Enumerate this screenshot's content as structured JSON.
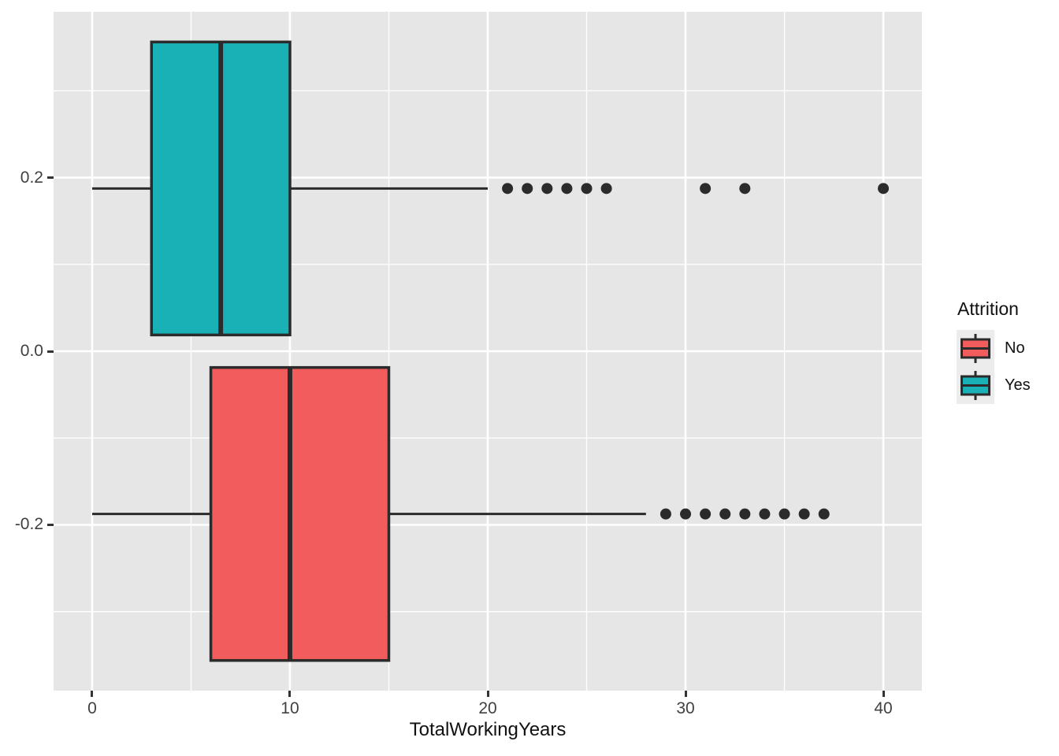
{
  "chart_data": {
    "type": "boxplot",
    "orientation": "horizontal",
    "title": "",
    "xlabel": "TotalWorkingYears",
    "ylabel": "",
    "x_axis": {
      "ticks": [
        0,
        10,
        20,
        30,
        40
      ],
      "tick_labels": [
        "0",
        "10",
        "20",
        "30",
        "40"
      ],
      "minor_ticks": [
        5,
        15,
        25,
        35
      ],
      "lim": [
        -1.95,
        41.95
      ]
    },
    "y_axis": {
      "ticks": [
        0.2,
        0.0,
        -0.2
      ],
      "tick_labels": [
        "0.2",
        "0.0",
        "-0.2"
      ],
      "minor_ticks": [
        0.3,
        0.1,
        -0.1,
        -0.3
      ],
      "lim": [
        -0.391,
        0.391
      ],
      "grid": true
    },
    "legend": {
      "title": "Attrition",
      "position": "right",
      "entries": [
        {
          "label": "No",
          "color": "#F25C5C"
        },
        {
          "label": "Yes",
          "color": "#19B1B5"
        }
      ]
    },
    "groups": [
      {
        "name": "Yes",
        "color": "#19B1B5",
        "center": 0.1875,
        "box_half_height": 0.16875,
        "whisker_low": 0,
        "q1": 3,
        "median": 6.5,
        "q3": 10,
        "whisker_high": 20,
        "outliers": [
          21,
          22,
          23,
          24,
          25,
          26,
          31,
          33,
          40
        ]
      },
      {
        "name": "No",
        "color": "#F25C5C",
        "center": -0.1875,
        "box_half_height": 0.16875,
        "whisker_low": 0,
        "q1": 6,
        "median": 10,
        "q3": 15,
        "whisker_high": 28,
        "outliers": [
          29,
          30,
          31,
          32,
          33,
          34,
          35,
          36,
          37
        ]
      }
    ],
    "style": {
      "panel_bg": "#E6E6E6",
      "grid_major": "#FFFFFF",
      "grid_minor": "#FFFFFF",
      "stroke": "#2B2B2B",
      "tick_mark_color": "#333333",
      "tick_label_color": "#404040",
      "axis_title_color": "#111111",
      "legend_text_color": "#111111",
      "legend_key_bg": "#ECECEC"
    }
  }
}
